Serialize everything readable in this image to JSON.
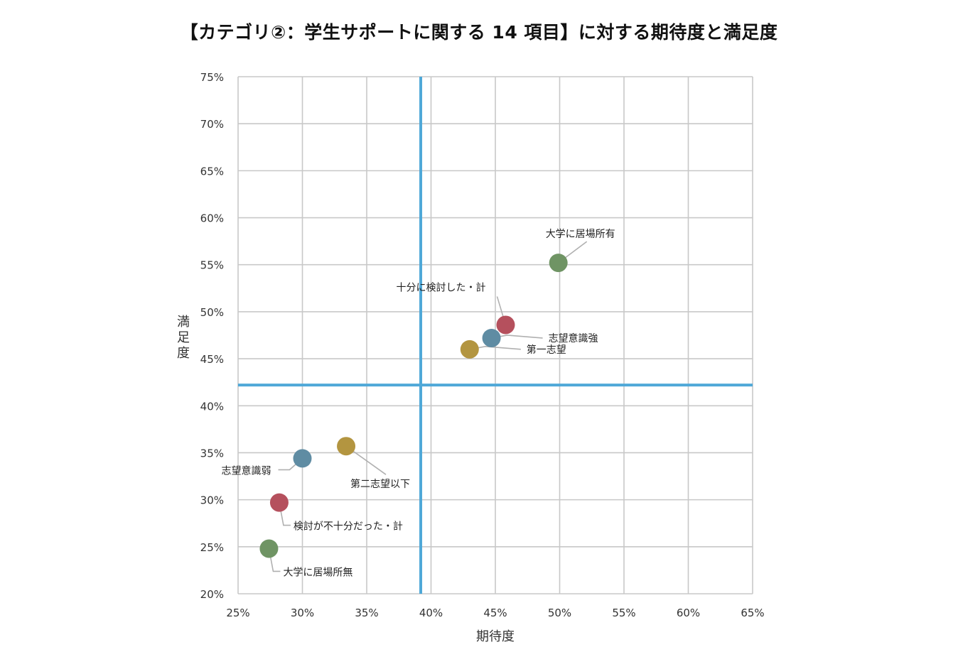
{
  "chart_data": {
    "type": "scatter",
    "title": "【カテゴリ②：学生サポートに関する 14 項目】に対する期待度と満足度",
    "xlabel": "期待度",
    "ylabel": "満足度",
    "xlim": [
      0.25,
      0.65
    ],
    "ylim": [
      0.2,
      0.75
    ],
    "xticks": [
      0.25,
      0.3,
      0.35,
      0.4,
      0.45,
      0.5,
      0.55,
      0.6,
      0.65
    ],
    "yticks": [
      0.2,
      0.25,
      0.3,
      0.35,
      0.4,
      0.45,
      0.5,
      0.55,
      0.6,
      0.65,
      0.7,
      0.75
    ],
    "xtick_labels": [
      "25%",
      "30%",
      "35%",
      "40%",
      "45%",
      "50%",
      "55%",
      "60%",
      "65%"
    ],
    "ytick_labels": [
      "20%",
      "25%",
      "30%",
      "35%",
      "40%",
      "45%",
      "50%",
      "55%",
      "60%",
      "65%",
      "70%",
      "75%"
    ],
    "grid": true,
    "reference_lines": {
      "x": 0.392,
      "y": 0.422,
      "color": "#4fa8d8"
    },
    "points": [
      {
        "label": "大学に居場所有",
        "x": 0.499,
        "y": 0.552,
        "color": "#6f9464",
        "label_pos": "above-right"
      },
      {
        "label": "十分に検討した・計",
        "x": 0.458,
        "y": 0.486,
        "color": "#b5505d",
        "label_pos": "above-left"
      },
      {
        "label": "志望意識強",
        "x": 0.447,
        "y": 0.472,
        "color": "#5f8ca3",
        "label_pos": "right"
      },
      {
        "label": "第一志望",
        "x": 0.43,
        "y": 0.46,
        "color": "#b39540",
        "label_pos": "right"
      },
      {
        "label": "第二志望以下",
        "x": 0.334,
        "y": 0.357,
        "color": "#b39540",
        "label_pos": "below-right"
      },
      {
        "label": "志望意識弱",
        "x": 0.3,
        "y": 0.344,
        "color": "#5f8ca3",
        "label_pos": "left"
      },
      {
        "label": "検討が不十分だった・計",
        "x": 0.282,
        "y": 0.297,
        "color": "#b5505d",
        "label_pos": "below-right"
      },
      {
        "label": "大学に居場所無",
        "x": 0.274,
        "y": 0.248,
        "color": "#6f9464",
        "label_pos": "below-right"
      }
    ]
  }
}
